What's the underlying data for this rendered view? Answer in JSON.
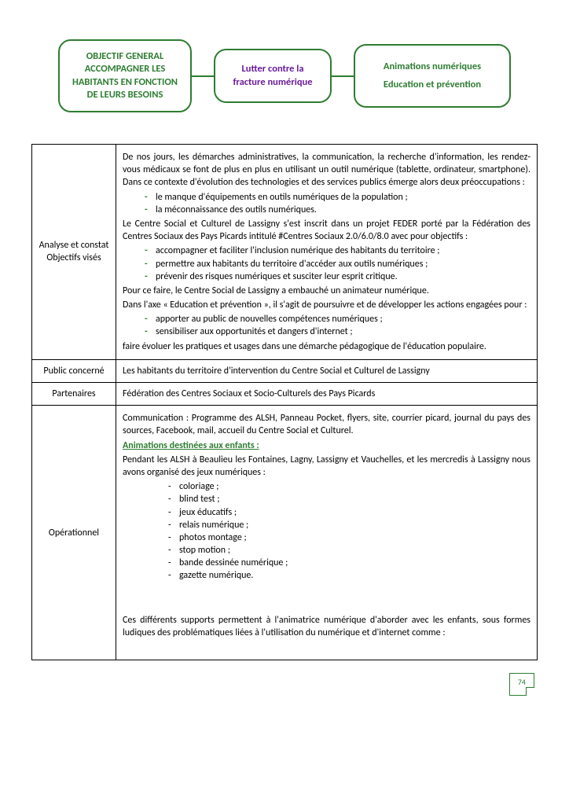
{
  "diagram": {
    "node1": "OBJECTIF GENERAL ACCOMPAGNER LES HABITANTS EN FONCTION DE LEURS BESOINS",
    "node2": "Lutter contre la fracture numérique",
    "node3_l1": "Animations numériques",
    "node3_l2": "Education et prévention"
  },
  "rows": {
    "r1": {
      "label": "Analyse et constat Objectifs visés",
      "p1": "De nos jours, les démarches administratives, la communication, la recherche d'information, les rendez-vous médicaux se font de plus en plus en utilisant un outil numérique (tablette, ordinateur, smartphone). Dans ce contexte d'évolution des technologies et des services publics émerge alors deux préoccupations :",
      "b1": "le manque d'équipements en outils numériques de la population ;",
      "b2": "la méconnaissance des outils numériques.",
      "p2": "Le Centre Social et Culturel de Lassigny s'est inscrit dans un projet FEDER porté par la Fédération des Centres Sociaux des Pays Picards intitulé #Centres Sociaux 2.0/6.0/8.0 avec pour objectifs :",
      "b3": "accompagner et faciliter l'inclusion numérique des habitants du territoire ;",
      "b4": "permettre aux habitants du territoire d'accéder aux outils numériques ;",
      "b5": "prévenir des risques numériques et susciter leur esprit critique.",
      "p3": "Pour ce faire, le Centre Social de Lassigny a embauché un animateur numérique.",
      "p4": "Dans l'axe « Education et prévention », il s'agit de poursuivre et de développer les actions engagées pour :",
      "b6": "apporter au public de nouvelles compétences numériques ;",
      "b7": "sensibiliser aux opportunités et dangers d'internet ;",
      "p5": "faire évoluer les pratiques et usages dans une démarche pédagogique de l'éducation populaire."
    },
    "r2": {
      "label": "Public concerné",
      "p1": "Les habitants du territoire d'intervention du Centre Social et Culturel de Lassigny"
    },
    "r3": {
      "label": "Partenaires",
      "p1": "Fédération des Centres Sociaux et Socio-Culturels des Pays Picards"
    },
    "r4": {
      "label": "Opérationnel",
      "p1": "Communication : Programme des ALSH, Panneau Pocket, flyers, site, courrier picard, journal du pays des sources, Facebook, mail, accueil du Centre Social et Culturel.",
      "head": "Animations destinées aux enfants :",
      "p2": "Pendant les ALSH à Beaulieu les Fontaines, Lagny, Lassigny et Vauchelles, et les mercredis à Lassigny nous avons organisé des jeux numériques :",
      "s1": "coloriage ;",
      "s2": "blind test ;",
      "s3": "jeux  éducatifs ;",
      "s4": "relais numérique ;",
      "s5": "photos montage ;",
      "s6": "stop motion ;",
      "s7": "bande dessinée numérique ;",
      "s8": "gazette numérique.",
      "p3": "Ces différents supports permettent à l'animatrice numérique d'aborder avec les enfants, sous formes ludiques des problématiques liées à l'utilisation du numérique et d'internet comme :"
    }
  },
  "page_number": "74"
}
